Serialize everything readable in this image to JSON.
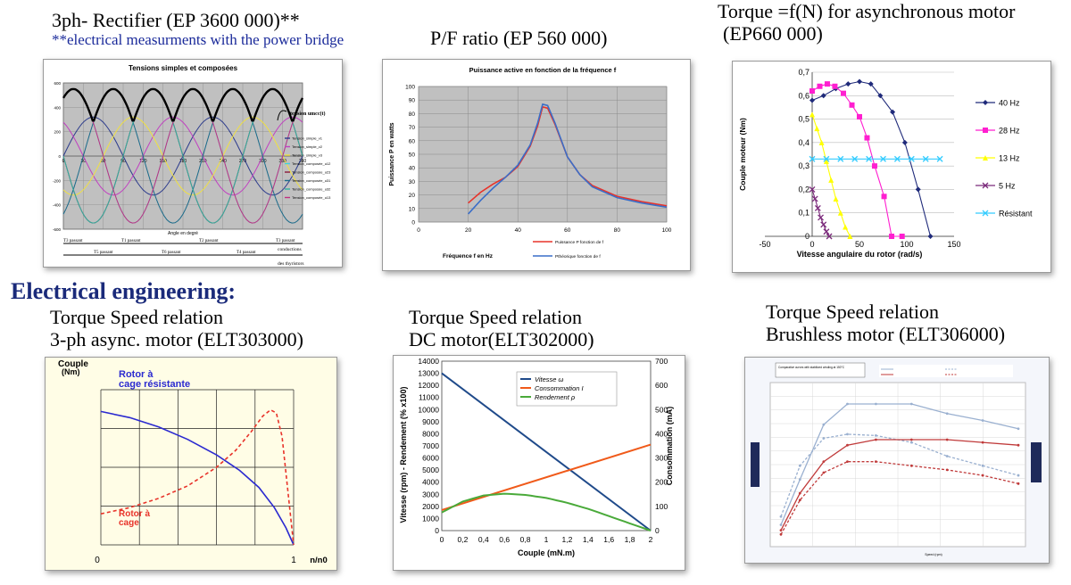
{
  "captions": {
    "rectifier": {
      "line1": "3ph- Rectifier (EP 3600 000)**",
      "line2": "**electrical measurments with the power bridge"
    },
    "pf": {
      "line1": "P/F ratio (EP 560 000)"
    },
    "torque_async": {
      "line1": "Torque =f(N) for asynchronous motor",
      "line2": "(EP660 000)"
    },
    "heading": "Electrical engineering:",
    "ts_async": {
      "line1": "Torque Speed relation",
      "line2": "3-ph async. motor (ELT303000)"
    },
    "ts_dc": {
      "line1": "Torque Speed relation",
      "line2": "DC  motor(ELT302000)"
    },
    "ts_bl": {
      "line1": "Torque Speed relation",
      "line2": "Brushless motor (ELT306000)"
    }
  },
  "panel_notes": {
    "rect_side_label": "tension umcc(t)",
    "rect_cond1": "conductions",
    "rect_cond2": "des thyristors",
    "rect_row1": [
      "T3 passant",
      "T1 passant",
      "T2 passant",
      "T3 passant"
    ],
    "rect_row2": [
      "T5 passant",
      "T6 passant",
      "T4 passant"
    ],
    "async_label_top": "Rotor à",
    "async_label_top2": "cage résistante",
    "async_label_bot": "Rotor à",
    "async_label_bot2": "cage",
    "bl_legend_title": "Comparative curves with stabilized winding at 150°C"
  },
  "colors": {
    "plot_gray": "#c0c0c0",
    "cream": "#fffde6",
    "red": "#e8332a",
    "blue": "#2b4aa8",
    "navy": "#1f2a7a",
    "magenta": "#ff1fd0",
    "yellow": "#ffff00",
    "purple": "#7b2a7b",
    "cyan": "#33ccff"
  },
  "chart_data": [
    {
      "id": "rectifier",
      "type": "line",
      "title": "Tensions simples et composées",
      "xlabel": "Angle en degré",
      "ylabel": "",
      "xlim": [
        0,
        360
      ],
      "ylim": [
        -600,
        600
      ],
      "x_ticks": [
        0,
        30,
        60,
        90,
        120,
        150,
        180,
        210,
        240,
        270,
        300,
        330,
        360
      ],
      "y_ticks": [
        -600,
        -400,
        -200,
        0,
        200,
        400,
        600
      ],
      "amplitude_simple": 320,
      "amplitude_composee": 550,
      "series": [
        {
          "name": "Tension_simple_v1",
          "color": "#2b3a8c",
          "phase_deg": 0,
          "amp": 320
        },
        {
          "name": "Tension_simple_v2",
          "color": "#c040c0",
          "phase_deg": -120,
          "amp": 320
        },
        {
          "name": "Tension_simple_v3",
          "color": "#f0e040",
          "phase_deg": 120,
          "amp": 320
        },
        {
          "name": "Tension_composée_u12",
          "color": "#40d0e0",
          "phase_deg": 30,
          "amp": 550
        },
        {
          "name": "Tension_composée_u23",
          "color": "#8a1a3a",
          "phase_deg": -90,
          "amp": 550
        },
        {
          "name": "Tension_composée_u31",
          "color": "#1a6a8a",
          "phase_deg": 150,
          "amp": 550
        },
        {
          "name": "Tension_composée_u32",
          "color": "#30b0a0",
          "phase_deg": 90,
          "amp": 550
        },
        {
          "name": "Tension_composée_u13",
          "color": "#c03080",
          "phase_deg": -150,
          "amp": 550
        }
      ]
    },
    {
      "id": "pf",
      "type": "line",
      "title": "Puissance active en fonction de la fréquence f",
      "xlabel": "Fréquence f en Hz",
      "ylabel": "Puissance P en watts",
      "xlim": [
        0,
        100
      ],
      "ylim": [
        0,
        100
      ],
      "x_ticks": [
        0,
        20,
        40,
        60,
        80,
        100
      ],
      "y_ticks": [
        0,
        10,
        20,
        30,
        40,
        50,
        60,
        70,
        80,
        90,
        100
      ],
      "series": [
        {
          "name": "Puissance P fonction de f",
          "color": "#e8332a",
          "x": [
            20,
            25,
            30,
            35,
            40,
            45,
            48,
            50,
            52,
            55,
            60,
            65,
            70,
            80,
            90,
            100
          ],
          "y": [
            14,
            22,
            28,
            33,
            41,
            56,
            71,
            85,
            84,
            72,
            48,
            35,
            27,
            19,
            15,
            12
          ]
        },
        {
          "name": "Pthéorique fonction de f",
          "color": "#3a6ec8",
          "x": [
            20,
            25,
            30,
            35,
            40,
            45,
            48,
            50,
            52,
            55,
            60,
            65,
            70,
            80,
            90,
            100
          ],
          "y": [
            6,
            16,
            25,
            33,
            42,
            57,
            73,
            87,
            86,
            73,
            48,
            35,
            26,
            18,
            14,
            11
          ]
        }
      ]
    },
    {
      "id": "torque_async",
      "type": "line",
      "title": "",
      "xlabel": "Vitesse angulaire du rotor (rad/s)",
      "ylabel": "Couple moteur (Nm)",
      "xlim": [
        -50,
        150
      ],
      "ylim": [
        0,
        0.7
      ],
      "x_ticks": [
        -50,
        0,
        50,
        100,
        150
      ],
      "y_ticks": [
        "0",
        "0,1",
        "0,2",
        "0,3",
        "0,4",
        "0,5",
        "0,6",
        "0,7"
      ],
      "series": [
        {
          "name": "40 Hz",
          "color": "#1f2a7a",
          "marker": "diamond",
          "x": [
            0,
            12,
            25,
            38,
            50,
            62,
            72,
            85,
            98,
            112,
            125
          ],
          "y": [
            0.58,
            0.6,
            0.63,
            0.65,
            0.66,
            0.65,
            0.6,
            0.53,
            0.4,
            0.2,
            0.0
          ]
        },
        {
          "name": "28 Hz",
          "color": "#ff1fd0",
          "marker": "square",
          "x": [
            0,
            8,
            16,
            24,
            33,
            42,
            50,
            58,
            66,
            76,
            84,
            95
          ],
          "y": [
            0.62,
            0.64,
            0.65,
            0.64,
            0.61,
            0.56,
            0.51,
            0.42,
            0.3,
            0.17,
            0.0,
            0.0
          ]
        },
        {
          "name": "13 Hz",
          "color": "#ffff00",
          "marker": "triangle",
          "x": [
            0,
            5,
            10,
            15,
            20,
            25,
            30,
            35,
            40
          ],
          "y": [
            0.52,
            0.46,
            0.4,
            0.32,
            0.24,
            0.16,
            0.1,
            0.04,
            0.0
          ]
        },
        {
          "name": "5 Hz",
          "color": "#7b2a7b",
          "marker": "x",
          "x": [
            0,
            3,
            6,
            9,
            12,
            15,
            18
          ],
          "y": [
            0.2,
            0.16,
            0.12,
            0.08,
            0.05,
            0.02,
            0.0
          ]
        },
        {
          "name": "Résistant",
          "color": "#33ccff",
          "marker": "x",
          "x": [
            0,
            15,
            30,
            45,
            60,
            75,
            90,
            105,
            120,
            135
          ],
          "y": [
            0.33,
            0.33,
            0.33,
            0.33,
            0.33,
            0.33,
            0.33,
            0.33,
            0.33,
            0.33
          ]
        }
      ]
    },
    {
      "id": "ts_async",
      "type": "line",
      "title": "",
      "xlabel": "n/n0",
      "ylabel": "Couple (Nm)",
      "x_ticks": [
        "0",
        "1"
      ],
      "series": [
        {
          "name": "Rotor à cage résistante",
          "color": "#2b2ad0",
          "style": "solid",
          "x": [
            0,
            0.15,
            0.3,
            0.45,
            0.6,
            0.72,
            0.82,
            0.9,
            0.96,
            1.0
          ],
          "y": [
            0.86,
            0.82,
            0.76,
            0.68,
            0.58,
            0.48,
            0.37,
            0.24,
            0.11,
            0.0
          ]
        },
        {
          "name": "Rotor à cage",
          "color": "#e8332a",
          "style": "dashed",
          "x": [
            0,
            0.15,
            0.3,
            0.45,
            0.6,
            0.7,
            0.78,
            0.84,
            0.88,
            0.91,
            0.94,
            0.97,
            1.0
          ],
          "y": [
            0.2,
            0.24,
            0.3,
            0.38,
            0.5,
            0.61,
            0.73,
            0.83,
            0.87,
            0.85,
            0.7,
            0.35,
            0.0
          ]
        }
      ]
    },
    {
      "id": "ts_dc",
      "type": "line",
      "title": "",
      "xlabel": "Couple (mN.m)",
      "ylabel": "Vitesse (rpm) - Rendement (% x100)",
      "ylabel2": "Consommation (mA)",
      "xlim": [
        0,
        2
      ],
      "ylim": [
        0,
        14000
      ],
      "ylim2": [
        0,
        700
      ],
      "x_ticks": [
        "0",
        "0,2",
        "0,4",
        "0,6",
        "0,8",
        "1",
        "1,2",
        "1,4",
        "1,6",
        "1,8",
        "2"
      ],
      "y_ticks": [
        0,
        1000,
        2000,
        3000,
        4000,
        5000,
        6000,
        7000,
        8000,
        9000,
        10000,
        11000,
        12000,
        13000,
        14000
      ],
      "y2_ticks": [
        0,
        100,
        200,
        300,
        400,
        500,
        600,
        700
      ],
      "series": [
        {
          "name": "Vitesse ω",
          "color": "#1f4a8a",
          "axis": "left",
          "x": [
            0,
            2
          ],
          "y": [
            13000,
            0
          ]
        },
        {
          "name": "Consommation I",
          "color": "#f05a1a",
          "axis": "right",
          "x": [
            0,
            2
          ],
          "y": [
            85,
            355
          ]
        },
        {
          "name": "Rendement ρ",
          "color": "#4aaa3a",
          "axis": "left",
          "x": [
            0,
            0.2,
            0.4,
            0.6,
            0.8,
            1.0,
            1.2,
            1.4,
            1.6,
            1.8,
            2.0
          ],
          "y": [
            1500,
            2400,
            2900,
            3050,
            2950,
            2700,
            2300,
            1800,
            1200,
            600,
            0
          ]
        }
      ]
    },
    {
      "id": "ts_bl",
      "type": "line",
      "title": "",
      "xlabel": "Speed (rpm)",
      "ylabel": "",
      "series": [
        {
          "name": "upper",
          "color": "#9ab0d0",
          "style": "solid",
          "x": [
            0,
            0.08,
            0.18,
            0.28,
            0.4,
            0.55,
            0.7,
            0.85,
            1.0
          ],
          "y": [
            0.12,
            0.45,
            0.85,
            1.0,
            1.0,
            1.0,
            0.93,
            0.88,
            0.82
          ]
        },
        {
          "name": "upper-dashed",
          "color": "#9ab0d0",
          "style": "dashed",
          "x": [
            0,
            0.08,
            0.18,
            0.28,
            0.4,
            0.55,
            0.7,
            0.85,
            1.0
          ],
          "y": [
            0.18,
            0.55,
            0.75,
            0.78,
            0.77,
            0.72,
            0.62,
            0.55,
            0.48
          ]
        },
        {
          "name": "red",
          "color": "#c03a3a",
          "style": "solid",
          "x": [
            0,
            0.08,
            0.18,
            0.28,
            0.4,
            0.55,
            0.7,
            0.85,
            1.0
          ],
          "y": [
            0.08,
            0.35,
            0.58,
            0.7,
            0.74,
            0.74,
            0.74,
            0.72,
            0.7
          ]
        },
        {
          "name": "red-dashed",
          "color": "#c03a3a",
          "style": "dashed",
          "x": [
            0,
            0.08,
            0.18,
            0.28,
            0.4,
            0.55,
            0.7,
            0.85,
            1.0
          ],
          "y": [
            0.05,
            0.3,
            0.5,
            0.58,
            0.58,
            0.55,
            0.52,
            0.48,
            0.42
          ]
        }
      ]
    }
  ]
}
